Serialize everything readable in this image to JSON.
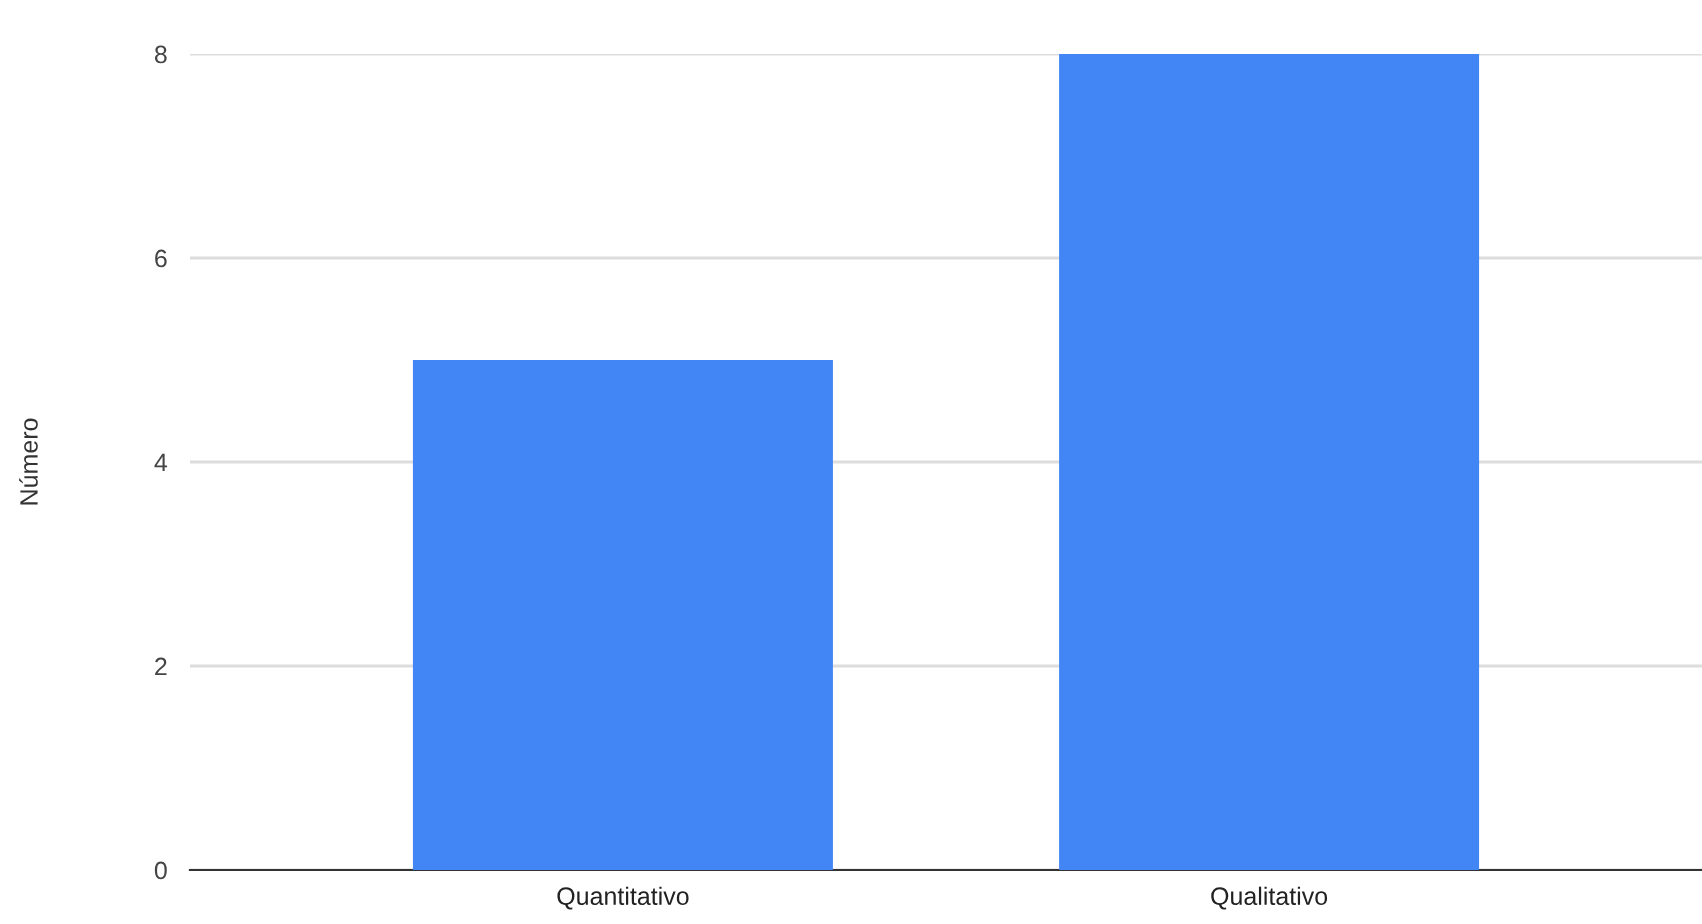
{
  "chart_data": {
    "type": "bar",
    "ylabel": "Número",
    "categories": [
      "Quantitativo",
      "Qualitativo"
    ],
    "values": [
      5,
      8
    ],
    "color": "#4285f4",
    "ylim": [
      0,
      8
    ],
    "yticks": [
      0,
      2,
      4,
      6,
      8
    ],
    "grid": "y",
    "legend": false
  }
}
